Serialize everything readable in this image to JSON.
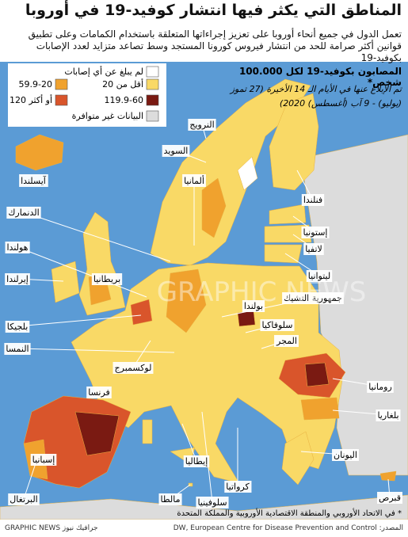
{
  "header": {
    "title": "المناطق التي يكثر فيها انتشار كوفيد-19 في أوروبا",
    "subtitle": "تعمل الدول في جميع أنحاء أوروبا على تعزيز إجراءاتها المتعلقة باستخدام الكمامات وعلى تطبيق قوانين أكثر صرامة للحد من انتشار فيروس كورونا المستجد وسط تصاعد متزايد لعدد الإصابات بكوفيد-19"
  },
  "legend": {
    "title": "المصابون بكوفيد-19 لكل 100.000 شخص*",
    "note": "تم الإبلاغ عنها في الأيام الـ 14 الأخيرة (27 تموز (يوليو) - 9 آب (أغسطس) 2020)",
    "items": [
      {
        "label": "لم يبلغ عن أي إصابات",
        "color": "#ffffff"
      },
      {
        "label": "أقل من 20",
        "color": "#f9d966"
      },
      {
        "label": "59.9-20",
        "color": "#f0a22e"
      },
      {
        "label": "119.9-60",
        "color": "#7a1a12"
      },
      {
        "label": "120 أو أكثر",
        "color": "#d9552b"
      },
      {
        "label": "البيانات غير متوافرة",
        "color": "#dcdcdc"
      }
    ]
  },
  "map": {
    "labels": [
      "النرويج",
      "السويد",
      "فنلندا",
      "آيسلندا",
      "ألمانيا",
      "الدنمارك",
      "إستونيا",
      "لاتفيا",
      "ليتوانيا",
      "جمهورية التشيك",
      "بولندا",
      "سلوفاكيا",
      "المجر",
      "رومانيا",
      "بلغاريا",
      "اليونان",
      "قبرص",
      "كرواتيا",
      "سلوفينيا",
      "مالطا",
      "إيطاليا",
      "لوكسمبرج",
      "فرنسا",
      "النمسا",
      "بلجيكا",
      "هولندا",
      "إيرلندا",
      "بريطانيا",
      "إسبانيا",
      "البرتغال"
    ],
    "watermark": "GRAPHIC NEWS"
  },
  "footnote": "* في الاتحاد الأوروبي والمنطقة الاقتصادية الأوروبية والمملكة المتحدة",
  "source": "المصدر: DW, European Centre for Disease Prevention and Control",
  "credit": "GRAPHIC NEWS جرافيك نيوز"
}
